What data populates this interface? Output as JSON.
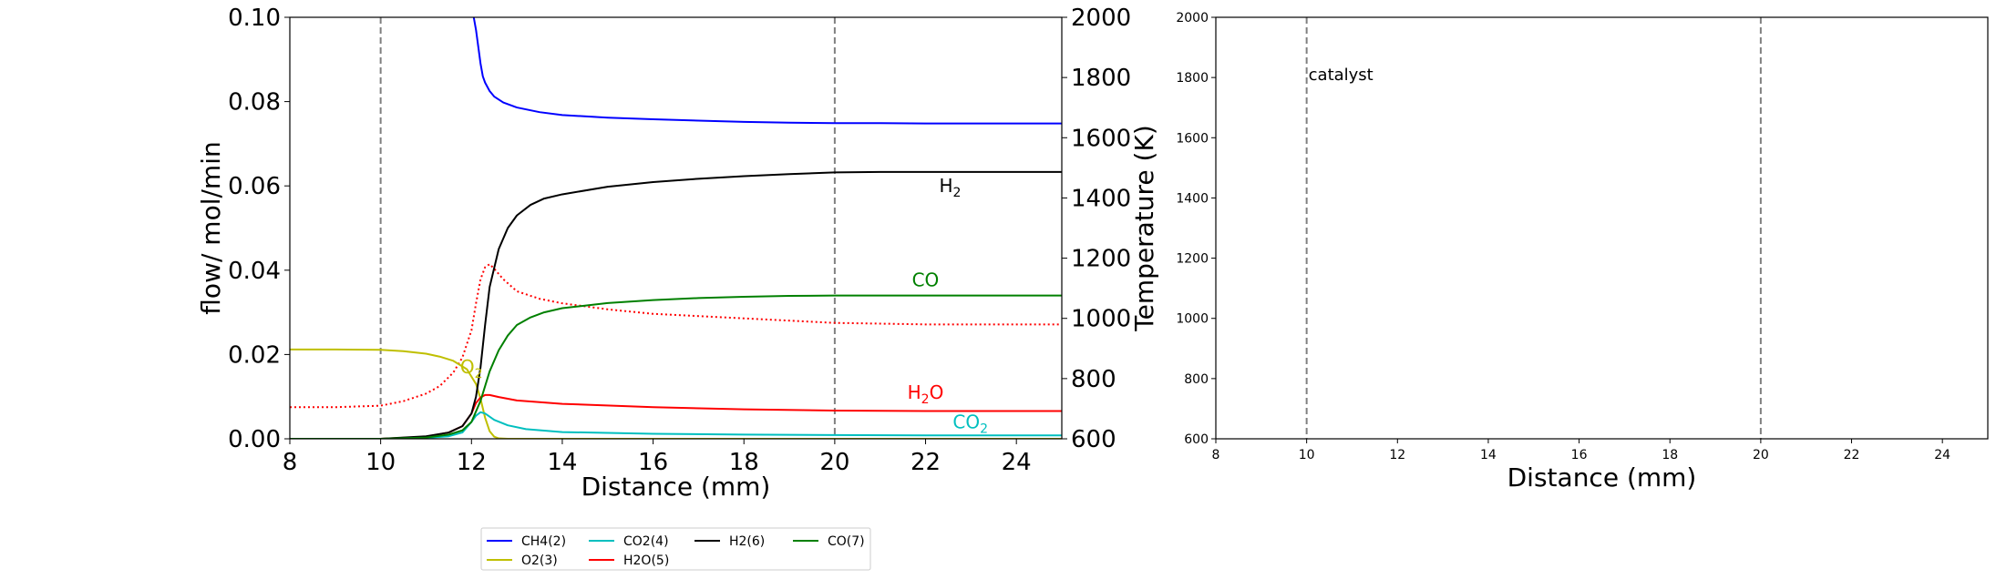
{
  "chart_data": [
    {
      "type": "line",
      "xlabel": "Distance (mm)",
      "ylabel": "flow/ mol/min",
      "y2label": "Temperature (K)",
      "xlim": [
        8,
        25
      ],
      "ylim": [
        0,
        0.1
      ],
      "y2lim": [
        600,
        2000
      ],
      "xticks": [
        8,
        10,
        12,
        14,
        16,
        18,
        20,
        22,
        24
      ],
      "yticks": [
        0.0,
        0.02,
        0.04,
        0.06,
        0.08,
        0.1
      ],
      "ytick_labels": [
        "0.00",
        "0.02",
        "0.04",
        "0.06",
        "0.08",
        "0.10"
      ],
      "y2ticks": [
        600,
        800,
        1000,
        1200,
        1400,
        1600,
        1800,
        2000
      ],
      "vlines": [
        10,
        20
      ],
      "legend_position": "below",
      "legend_columns": 4,
      "series": [
        {
          "name": "CH4(2)",
          "color": "#0000ff",
          "x": [
            12.05,
            12.1,
            12.15,
            12.2,
            12.25,
            12.3,
            12.4,
            12.5,
            12.7,
            13.0,
            13.5,
            14,
            15,
            16,
            17,
            18,
            19,
            20,
            21,
            22,
            23,
            24,
            25
          ],
          "y": [
            0.1,
            0.097,
            0.093,
            0.089,
            0.086,
            0.0845,
            0.0825,
            0.0812,
            0.0798,
            0.0786,
            0.0775,
            0.0768,
            0.0762,
            0.0758,
            0.0755,
            0.0752,
            0.075,
            0.0749,
            0.0749,
            0.0748,
            0.0748,
            0.0748,
            0.0748
          ]
        },
        {
          "name": "O2(3)",
          "color": "#bfbf00",
          "x": [
            8,
            9,
            10,
            10.5,
            11,
            11.3,
            11.6,
            11.9,
            12.1,
            12.2,
            12.3,
            12.4,
            12.5,
            12.6,
            12.8,
            13,
            25
          ],
          "y": [
            0.0212,
            0.0212,
            0.0211,
            0.0208,
            0.0202,
            0.0195,
            0.0185,
            0.0165,
            0.013,
            0.0095,
            0.005,
            0.0018,
            0.0005,
            0.0001,
            0.0,
            0.0,
            0.0
          ]
        },
        {
          "name": "CO2(4)",
          "color": "#00bfbf",
          "x": [
            8,
            10,
            11,
            11.5,
            11.8,
            12.0,
            12.1,
            12.2,
            12.3,
            12.5,
            12.8,
            13.2,
            14,
            16,
            18,
            20,
            22,
            25
          ],
          "y": [
            0.0,
            0.0,
            0.0002,
            0.0006,
            0.0015,
            0.004,
            0.0055,
            0.0063,
            0.006,
            0.0045,
            0.0032,
            0.0023,
            0.0016,
            0.0012,
            0.001,
            0.0009,
            0.0008,
            0.0008
          ]
        },
        {
          "name": "H2O(5)",
          "color": "#ff0000",
          "x": [
            8,
            10,
            11,
            11.5,
            11.8,
            12.0,
            12.1,
            12.2,
            12.3,
            12.4,
            12.6,
            13,
            14,
            16,
            18,
            20,
            22,
            25
          ],
          "y": [
            0.0,
            0.0,
            0.0005,
            0.0015,
            0.003,
            0.006,
            0.0085,
            0.0098,
            0.0104,
            0.0104,
            0.0099,
            0.0091,
            0.0083,
            0.0075,
            0.007,
            0.0067,
            0.0066,
            0.0066
          ]
        },
        {
          "name": "H2(6)",
          "color": "#000000",
          "x": [
            8,
            10,
            11,
            11.5,
            11.8,
            12.0,
            12.1,
            12.2,
            12.3,
            12.4,
            12.6,
            12.8,
            13.0,
            13.3,
            13.6,
            14,
            15,
            16,
            17,
            18,
            19,
            20,
            21,
            22,
            23,
            24,
            25
          ],
          "y": [
            0.0,
            0.0,
            0.0006,
            0.0015,
            0.003,
            0.006,
            0.01,
            0.017,
            0.027,
            0.036,
            0.045,
            0.05,
            0.053,
            0.0555,
            0.057,
            0.058,
            0.0598,
            0.0609,
            0.0617,
            0.0623,
            0.0628,
            0.0632,
            0.0633,
            0.0633,
            0.0633,
            0.0633,
            0.0633
          ]
        },
        {
          "name": "CO(7)",
          "color": "#008000",
          "x": [
            8,
            10,
            11,
            11.5,
            11.8,
            12.0,
            12.2,
            12.4,
            12.6,
            12.8,
            13.0,
            13.3,
            13.6,
            14,
            15,
            16,
            17,
            18,
            19,
            20,
            22,
            25
          ],
          "y": [
            0.0,
            0.0,
            0.0003,
            0.001,
            0.002,
            0.004,
            0.009,
            0.016,
            0.021,
            0.0245,
            0.027,
            0.0288,
            0.03,
            0.031,
            0.0322,
            0.0329,
            0.0334,
            0.0337,
            0.0339,
            0.034,
            0.034,
            0.034
          ]
        }
      ],
      "temperature": {
        "color": "#ff0000",
        "linestyle": "dotted",
        "axis": "right",
        "x": [
          8,
          9,
          10,
          10.5,
          11,
          11.3,
          11.6,
          11.8,
          12.0,
          12.1,
          12.2,
          12.3,
          12.4,
          12.5,
          12.7,
          13.0,
          13.5,
          14,
          15,
          16,
          18,
          20,
          22,
          25
        ],
        "y": [
          705,
          705,
          710,
          725,
          750,
          775,
          820,
          870,
          960,
          1050,
          1130,
          1170,
          1180,
          1165,
          1130,
          1090,
          1065,
          1050,
          1030,
          1015,
          1000,
          985,
          980,
          980
        ]
      },
      "annotations": [
        {
          "x": 22.3,
          "y": 0.0585,
          "color": "#000000",
          "pre": "H",
          "sub": "2",
          "post": ""
        },
        {
          "x": 21.7,
          "y": 0.0362,
          "color": "#008000",
          "pre": "CO",
          "sub": "",
          "post": ""
        },
        {
          "x": 11.75,
          "y": 0.0155,
          "color": "#bfbf00",
          "pre": "O",
          "sub": "2",
          "post": ""
        },
        {
          "x": 21.6,
          "y": 0.0095,
          "color": "#ff0000",
          "pre": "H",
          "sub": "2",
          "post": "O"
        },
        {
          "x": 22.6,
          "y": 0.0025,
          "color": "#00bfbf",
          "pre": "CO",
          "sub": "2",
          "post": ""
        }
      ]
    },
    {
      "type": "line",
      "xlabel": "Distance (mm)",
      "ylabel": "",
      "xlim": [
        8,
        25
      ],
      "ylim": [
        600,
        2000
      ],
      "xticks": [
        8,
        10,
        12,
        14,
        16,
        18,
        20,
        22,
        24
      ],
      "yticks": [
        600,
        800,
        1000,
        1200,
        1400,
        1600,
        1800,
        2000
      ],
      "vlines": [
        10,
        20
      ],
      "annotations": [
        {
          "x": 10.0,
          "y": 1810,
          "color": "#000000",
          "text": "catalyst"
        }
      ],
      "series": []
    }
  ]
}
